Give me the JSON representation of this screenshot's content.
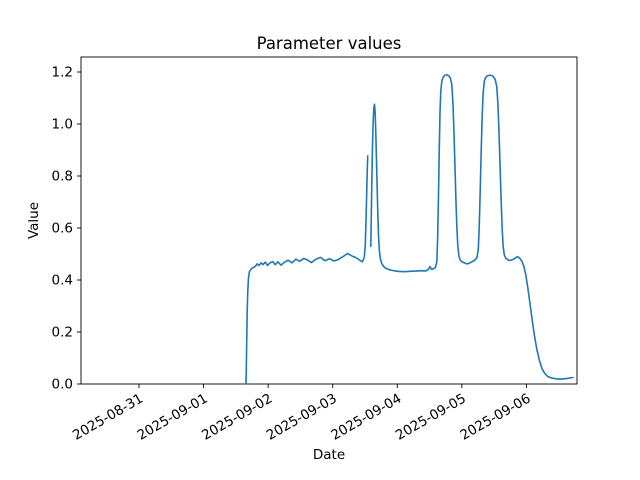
{
  "figure": {
    "background": "#ffffff"
  },
  "chart_data": {
    "type": "line",
    "title": "Parameter values",
    "xlabel": "Date",
    "ylabel": "Value",
    "x_tick_labels": [
      "2025-08-31",
      "2025-09-01",
      "2025-09-02",
      "2025-09-03",
      "2025-09-04",
      "2025-09-05",
      "2025-09-06"
    ],
    "y_tick_labels": [
      "0.0",
      "0.2",
      "0.4",
      "0.6",
      "0.8",
      "1.0",
      "1.2"
    ],
    "y_tick_values": [
      0.0,
      0.2,
      0.4,
      0.6,
      0.8,
      1.0,
      1.2
    ],
    "ylim": [
      0.0,
      1.258
    ],
    "xlim_days_from_first_tick": [
      -0.9,
      6.78
    ],
    "grid": false,
    "legend": null,
    "line_color": "#1f77b4",
    "line_width": 1.6,
    "series": [
      {
        "name": "Parameter values",
        "x_unit": "days since 2025-08-31 00:00",
        "note": "line has a small visible gap on the rising edge of the first spike near value 0.9",
        "segments": [
          [
            [
              1.657,
              0.0
            ],
            [
              1.662,
              0.06
            ],
            [
              1.668,
              0.16
            ],
            [
              1.675,
              0.27
            ],
            [
              1.684,
              0.355
            ],
            [
              1.695,
              0.405
            ],
            [
              1.71,
              0.432
            ],
            [
              1.74,
              0.443
            ],
            [
              1.77,
              0.448
            ],
            [
              1.8,
              0.452
            ],
            [
              1.83,
              0.462
            ],
            [
              1.86,
              0.456
            ],
            [
              1.89,
              0.466
            ],
            [
              1.92,
              0.459
            ],
            [
              1.955,
              0.469
            ],
            [
              1.99,
              0.456
            ],
            [
              2.03,
              0.466
            ],
            [
              2.07,
              0.471
            ],
            [
              2.11,
              0.459
            ],
            [
              2.15,
              0.47
            ],
            [
              2.2,
              0.457
            ],
            [
              2.25,
              0.468
            ],
            [
              2.31,
              0.476
            ],
            [
              2.37,
              0.466
            ],
            [
              2.43,
              0.48
            ],
            [
              2.49,
              0.472
            ],
            [
              2.55,
              0.483
            ],
            [
              2.61,
              0.477
            ],
            [
              2.67,
              0.467
            ],
            [
              2.74,
              0.48
            ],
            [
              2.81,
              0.487
            ],
            [
              2.88,
              0.474
            ],
            [
              2.95,
              0.482
            ],
            [
              3.02,
              0.473
            ],
            [
              3.09,
              0.479
            ],
            [
              3.16,
              0.49
            ],
            [
              3.23,
              0.502
            ],
            [
              3.3,
              0.492
            ],
            [
              3.36,
              0.486
            ],
            [
              3.42,
              0.476
            ],
            [
              3.46,
              0.47
            ],
            [
              3.49,
              0.488
            ],
            [
              3.505,
              0.54
            ],
            [
              3.515,
              0.62
            ],
            [
              3.525,
              0.72
            ],
            [
              3.535,
              0.82
            ],
            [
              3.542,
              0.877
            ]
          ],
          [
            [
              3.59,
              0.53
            ],
            [
              3.598,
              0.65
            ],
            [
              3.606,
              0.78
            ],
            [
              3.615,
              0.9
            ],
            [
              3.625,
              1.0
            ],
            [
              3.636,
              1.06
            ],
            [
              3.647,
              1.076
            ],
            [
              3.658,
              1.04
            ],
            [
              3.668,
              0.96
            ],
            [
              3.678,
              0.86
            ],
            [
              3.688,
              0.76
            ],
            [
              3.698,
              0.66
            ],
            [
              3.708,
              0.58
            ],
            [
              3.72,
              0.52
            ],
            [
              3.735,
              0.487
            ],
            [
              3.755,
              0.466
            ],
            [
              3.78,
              0.455
            ],
            [
              3.81,
              0.447
            ],
            [
              3.85,
              0.442
            ],
            [
              3.9,
              0.438
            ],
            [
              3.96,
              0.435
            ],
            [
              4.03,
              0.433
            ],
            [
              4.1,
              0.432
            ],
            [
              4.17,
              0.433
            ],
            [
              4.24,
              0.434
            ],
            [
              4.31,
              0.435
            ],
            [
              4.38,
              0.436
            ],
            [
              4.44,
              0.435
            ],
            [
              4.48,
              0.44
            ],
            [
              4.505,
              0.452
            ],
            [
              4.53,
              0.441
            ],
            [
              4.56,
              0.443
            ],
            [
              4.59,
              0.448
            ],
            [
              4.612,
              0.47
            ],
            [
              4.625,
              0.56
            ],
            [
              4.638,
              0.72
            ],
            [
              4.65,
              0.9
            ],
            [
              4.662,
              1.05
            ],
            [
              4.675,
              1.13
            ],
            [
              4.69,
              1.165
            ],
            [
              4.71,
              1.18
            ],
            [
              4.74,
              1.188
            ],
            [
              4.77,
              1.189
            ],
            [
              4.8,
              1.185
            ],
            [
              4.825,
              1.175
            ],
            [
              4.845,
              1.15
            ],
            [
              4.862,
              1.08
            ],
            [
              4.878,
              0.97
            ],
            [
              4.893,
              0.84
            ],
            [
              4.908,
              0.71
            ],
            [
              4.923,
              0.6
            ],
            [
              4.938,
              0.53
            ],
            [
              4.955,
              0.492
            ],
            [
              4.975,
              0.477
            ],
            [
              5.0,
              0.47
            ],
            [
              5.04,
              0.466
            ],
            [
              5.08,
              0.462
            ],
            [
              5.12,
              0.465
            ],
            [
              5.16,
              0.471
            ],
            [
              5.2,
              0.476
            ],
            [
              5.235,
              0.487
            ],
            [
              5.255,
              0.52
            ],
            [
              5.27,
              0.61
            ],
            [
              5.285,
              0.75
            ],
            [
              5.3,
              0.9
            ],
            [
              5.315,
              1.03
            ],
            [
              5.33,
              1.12
            ],
            [
              5.348,
              1.165
            ],
            [
              5.37,
              1.18
            ],
            [
              5.4,
              1.186
            ],
            [
              5.44,
              1.188
            ],
            [
              5.48,
              1.184
            ],
            [
              5.515,
              1.172
            ],
            [
              5.54,
              1.145
            ],
            [
              5.558,
              1.08
            ],
            [
              5.575,
              0.97
            ],
            [
              5.592,
              0.84
            ],
            [
              5.608,
              0.71
            ],
            [
              5.624,
              0.6
            ],
            [
              5.64,
              0.528
            ],
            [
              5.658,
              0.496
            ],
            [
              5.68,
              0.484
            ],
            [
              5.71,
              0.478
            ],
            [
              5.745,
              0.475
            ],
            [
              5.785,
              0.478
            ],
            [
              5.825,
              0.484
            ],
            [
              5.862,
              0.49
            ],
            [
              5.895,
              0.484
            ],
            [
              5.93,
              0.472
            ],
            [
              5.96,
              0.453
            ],
            [
              5.99,
              0.42
            ],
            [
              6.02,
              0.373
            ],
            [
              6.055,
              0.31
            ],
            [
              6.09,
              0.245
            ],
            [
              6.125,
              0.185
            ],
            [
              6.16,
              0.135
            ],
            [
              6.2,
              0.092
            ],
            [
              6.24,
              0.06
            ],
            [
              6.285,
              0.04
            ],
            [
              6.33,
              0.029
            ],
            [
              6.39,
              0.023
            ],
            [
              6.46,
              0.02
            ],
            [
              6.54,
              0.019
            ],
            [
              6.62,
              0.021
            ],
            [
              6.69,
              0.024
            ],
            [
              6.72,
              0.025
            ]
          ]
        ]
      }
    ]
  }
}
